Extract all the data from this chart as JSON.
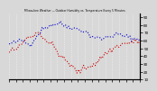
{
  "title": "Milwaukee Weather — Outdoor Humidity vs. Temperature Every 5 Minutes",
  "bg_color": "#d8d8d8",
  "plot_bg": "#d8d8d8",
  "grid_color": "#ffffff",
  "blue_color": "#0000cc",
  "red_color": "#cc0000",
  "right_yticks": [
    90,
    80,
    70,
    60,
    50,
    40,
    30,
    20,
    10
  ],
  "n_points": 80,
  "ylim": [
    10,
    95
  ]
}
